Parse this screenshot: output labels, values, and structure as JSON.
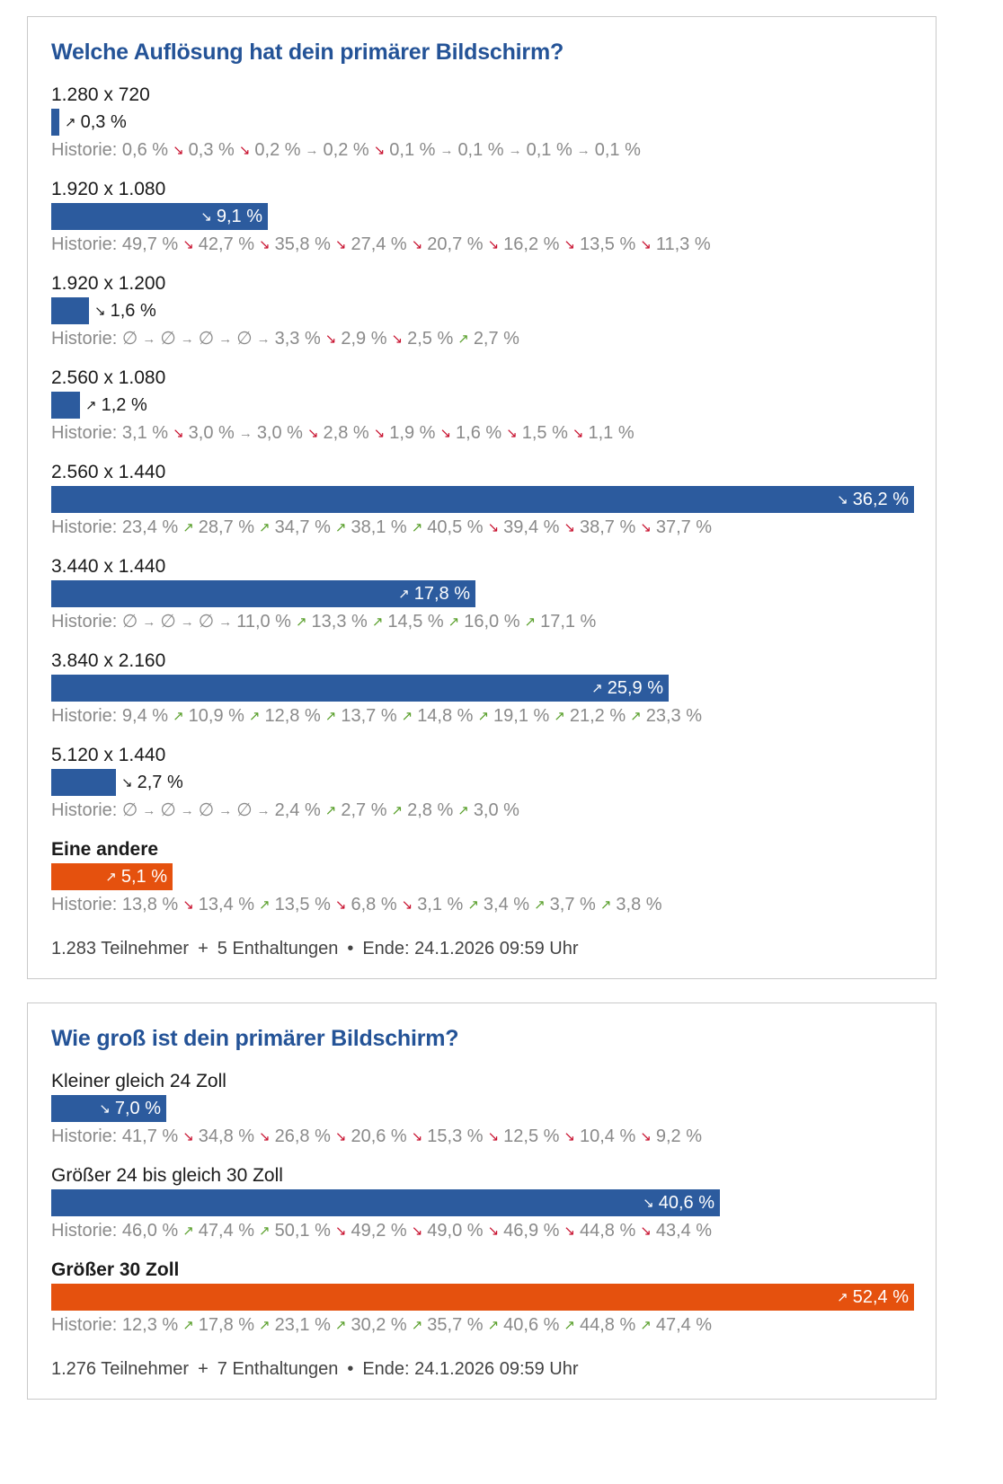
{
  "colors": {
    "bar": "#2c5b9e",
    "highlight": "#e5510e",
    "up": "#5aa02c",
    "down": "#c8102e"
  },
  "history_label": "Historie:",
  "chart_data": [
    {
      "type": "bar",
      "title": "Welche Auflösung hat dein primärer Bildschirm?",
      "max_value": 36.2,
      "options": [
        {
          "label": "1.280 x 720",
          "value": 0.3,
          "value_text": "0,3 %",
          "trend": "up",
          "highlight": false,
          "history": [
            {
              "v": "0,6 %"
            },
            {
              "a": "down",
              "v": "0,3 %"
            },
            {
              "a": "down",
              "v": "0,2 %"
            },
            {
              "a": "flat",
              "v": "0,2 %"
            },
            {
              "a": "down",
              "v": "0,1 %"
            },
            {
              "a": "flat",
              "v": "0,1 %"
            },
            {
              "a": "flat",
              "v": "0,1 %"
            },
            {
              "a": "flat",
              "v": "0,1 %"
            }
          ]
        },
        {
          "label": "1.920 x 1.080",
          "value": 9.1,
          "value_text": "9,1 %",
          "trend": "down",
          "highlight": false,
          "history": [
            {
              "v": "49,7 %"
            },
            {
              "a": "down",
              "v": "42,7 %"
            },
            {
              "a": "down",
              "v": "35,8 %"
            },
            {
              "a": "down",
              "v": "27,4 %"
            },
            {
              "a": "down",
              "v": "20,7 %"
            },
            {
              "a": "down",
              "v": "16,2 %"
            },
            {
              "a": "down",
              "v": "13,5 %"
            },
            {
              "a": "down",
              "v": "11,3 %"
            }
          ]
        },
        {
          "label": "1.920 x 1.200",
          "value": 1.6,
          "value_text": "1,6 %",
          "trend": "down",
          "highlight": false,
          "history": [
            {
              "v": "∅"
            },
            {
              "a": "flat",
              "v": "∅"
            },
            {
              "a": "flat",
              "v": "∅"
            },
            {
              "a": "flat",
              "v": "∅"
            },
            {
              "a": "flat",
              "v": "3,3 %"
            },
            {
              "a": "down",
              "v": "2,9 %"
            },
            {
              "a": "down",
              "v": "2,5 %"
            },
            {
              "a": "up",
              "v": "2,7 %"
            }
          ]
        },
        {
          "label": "2.560 x 1.080",
          "value": 1.2,
          "value_text": "1,2 %",
          "trend": "up",
          "highlight": false,
          "history": [
            {
              "v": "3,1 %"
            },
            {
              "a": "down",
              "v": "3,0 %"
            },
            {
              "a": "flat",
              "v": "3,0 %"
            },
            {
              "a": "down",
              "v": "2,8 %"
            },
            {
              "a": "down",
              "v": "1,9 %"
            },
            {
              "a": "down",
              "v": "1,6 %"
            },
            {
              "a": "down",
              "v": "1,5 %"
            },
            {
              "a": "down",
              "v": "1,1 %"
            }
          ]
        },
        {
          "label": "2.560 x 1.440",
          "value": 36.2,
          "value_text": "36,2 %",
          "trend": "down",
          "highlight": false,
          "history": [
            {
              "v": "23,4 %"
            },
            {
              "a": "up",
              "v": "28,7 %"
            },
            {
              "a": "up",
              "v": "34,7 %"
            },
            {
              "a": "up",
              "v": "38,1 %"
            },
            {
              "a": "up",
              "v": "40,5 %"
            },
            {
              "a": "down",
              "v": "39,4 %"
            },
            {
              "a": "down",
              "v": "38,7 %"
            },
            {
              "a": "down",
              "v": "37,7 %"
            }
          ]
        },
        {
          "label": "3.440 x 1.440",
          "value": 17.8,
          "value_text": "17,8 %",
          "trend": "up",
          "highlight": false,
          "history": [
            {
              "v": "∅"
            },
            {
              "a": "flat",
              "v": "∅"
            },
            {
              "a": "flat",
              "v": "∅"
            },
            {
              "a": "flat",
              "v": "11,0 %"
            },
            {
              "a": "up",
              "v": "13,3 %"
            },
            {
              "a": "up",
              "v": "14,5 %"
            },
            {
              "a": "up",
              "v": "16,0 %"
            },
            {
              "a": "up",
              "v": "17,1 %"
            }
          ]
        },
        {
          "label": "3.840 x 2.160",
          "value": 25.9,
          "value_text": "25,9 %",
          "trend": "up",
          "highlight": false,
          "history": [
            {
              "v": "9,4 %"
            },
            {
              "a": "up",
              "v": "10,9 %"
            },
            {
              "a": "up",
              "v": "12,8 %"
            },
            {
              "a": "up",
              "v": "13,7 %"
            },
            {
              "a": "up",
              "v": "14,8 %"
            },
            {
              "a": "up",
              "v": "19,1 %"
            },
            {
              "a": "up",
              "v": "21,2 %"
            },
            {
              "a": "up",
              "v": "23,3 %"
            }
          ]
        },
        {
          "label": "5.120 x 1.440",
          "value": 2.7,
          "value_text": "2,7 %",
          "trend": "down",
          "highlight": false,
          "history": [
            {
              "v": "∅"
            },
            {
              "a": "flat",
              "v": "∅"
            },
            {
              "a": "flat",
              "v": "∅"
            },
            {
              "a": "flat",
              "v": "∅"
            },
            {
              "a": "flat",
              "v": "2,4 %"
            },
            {
              "a": "up",
              "v": "2,7 %"
            },
            {
              "a": "up",
              "v": "2,8 %"
            },
            {
              "a": "up",
              "v": "3,0 %"
            }
          ]
        },
        {
          "label": "Eine andere",
          "value": 5.1,
          "value_text": "5,1 %",
          "trend": "up",
          "highlight": true,
          "history": [
            {
              "v": "13,8 %"
            },
            {
              "a": "down",
              "v": "13,4 %"
            },
            {
              "a": "up",
              "v": "13,5 %"
            },
            {
              "a": "down",
              "v": "6,8 %"
            },
            {
              "a": "down",
              "v": "3,1 %"
            },
            {
              "a": "up",
              "v": "3,4 %"
            },
            {
              "a": "up",
              "v": "3,7 %"
            },
            {
              "a": "up",
              "v": "3,8 %"
            }
          ]
        }
      ],
      "footer": {
        "participants": "1.283 Teilnehmer",
        "abstentions": "5 Enthaltungen",
        "end": "Ende: 24.1.2026 09:59 Uhr"
      }
    },
    {
      "type": "bar",
      "title": "Wie groß ist dein primärer Bildschirm?",
      "max_value": 52.4,
      "options": [
        {
          "label": "Kleiner gleich 24 Zoll",
          "value": 7.0,
          "value_text": "7,0 %",
          "trend": "down",
          "highlight": false,
          "history": [
            {
              "v": "41,7 %"
            },
            {
              "a": "down",
              "v": "34,8 %"
            },
            {
              "a": "down",
              "v": "26,8 %"
            },
            {
              "a": "down",
              "v": "20,6 %"
            },
            {
              "a": "down",
              "v": "15,3 %"
            },
            {
              "a": "down",
              "v": "12,5 %"
            },
            {
              "a": "down",
              "v": "10,4 %"
            },
            {
              "a": "down",
              "v": "9,2 %"
            }
          ]
        },
        {
          "label": "Größer 24 bis gleich 30 Zoll",
          "value": 40.6,
          "value_text": "40,6 %",
          "trend": "down",
          "highlight": false,
          "history": [
            {
              "v": "46,0 %"
            },
            {
              "a": "up",
              "v": "47,4 %"
            },
            {
              "a": "up",
              "v": "50,1 %"
            },
            {
              "a": "down",
              "v": "49,2 %"
            },
            {
              "a": "down",
              "v": "49,0 %"
            },
            {
              "a": "down",
              "v": "46,9 %"
            },
            {
              "a": "down",
              "v": "44,8 %"
            },
            {
              "a": "down",
              "v": "43,4 %"
            }
          ]
        },
        {
          "label": "Größer 30 Zoll",
          "value": 52.4,
          "value_text": "52,4 %",
          "trend": "up",
          "highlight": true,
          "history": [
            {
              "v": "12,3 %"
            },
            {
              "a": "up",
              "v": "17,8 %"
            },
            {
              "a": "up",
              "v": "23,1 %"
            },
            {
              "a": "up",
              "v": "30,2 %"
            },
            {
              "a": "up",
              "v": "35,7 %"
            },
            {
              "a": "up",
              "v": "40,6 %"
            },
            {
              "a": "up",
              "v": "44,8 %"
            },
            {
              "a": "up",
              "v": "47,4 %"
            }
          ]
        }
      ],
      "footer": {
        "participants": "1.276 Teilnehmer",
        "abstentions": "7 Enthaltungen",
        "end": "Ende: 24.1.2026 09:59 Uhr"
      }
    }
  ]
}
